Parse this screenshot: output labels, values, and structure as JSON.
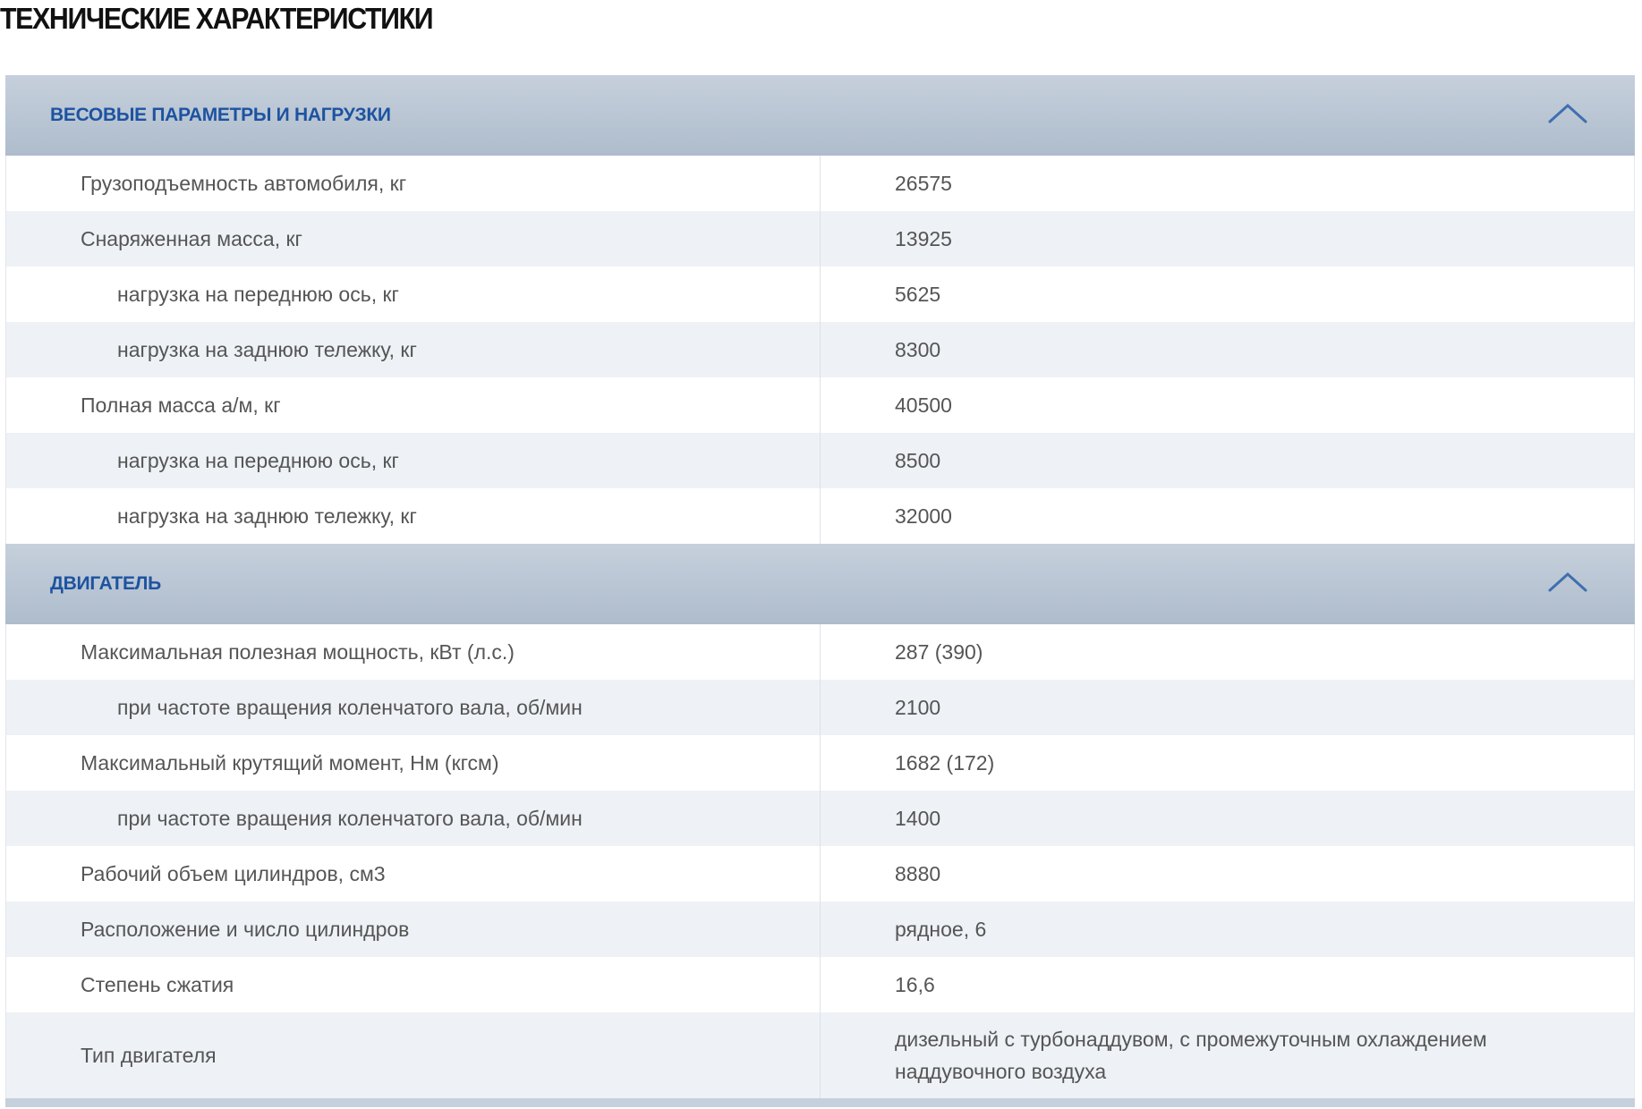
{
  "page_title": "ТЕХНИЧЕСКИЕ ХАРАКТЕРИСТИКИ",
  "colors": {
    "section_header": "#b8c5d4",
    "section_title": "#1d53a0",
    "row_alt": "#eef1f5"
  },
  "sections": [
    {
      "title": "ВЕСОВЫЕ ПАРАМЕТРЫ И НАГРУЗКИ",
      "icon": "chevron-up-icon",
      "rows": [
        {
          "label": "Грузоподъемность автомобиля, кг",
          "value": "26575",
          "sub": false
        },
        {
          "label": "Снаряженная масса, кг",
          "value": "13925",
          "sub": false
        },
        {
          "label": "нагрузка на переднюю ось, кг",
          "value": "5625",
          "sub": true
        },
        {
          "label": "нагрузка на заднюю тележку, кг",
          "value": "8300",
          "sub": true
        },
        {
          "label": "Полная масса а/м, кг",
          "value": "40500",
          "sub": false
        },
        {
          "label": "нагрузка на переднюю ось, кг",
          "value": "8500",
          "sub": true
        },
        {
          "label": "нагрузка на заднюю тележку, кг",
          "value": "32000",
          "sub": true
        }
      ]
    },
    {
      "title": "ДВИГАТЕЛЬ",
      "icon": "chevron-up-icon",
      "rows": [
        {
          "label": "Максимальная полезная мощность, кВт (л.с.)",
          "value": "287 (390)",
          "sub": false
        },
        {
          "label": "при частоте вращения коленчатого вала, об/мин",
          "value": "2100",
          "sub": true
        },
        {
          "label": "Максимальный крутящий момент, Нм (кгсм)",
          "value": "1682 (172)",
          "sub": false
        },
        {
          "label": "при частоте вращения коленчатого вала, об/мин",
          "value": "1400",
          "sub": true
        },
        {
          "label": "Рабочий объем цилиндров, см3",
          "value": "8880",
          "sub": false
        },
        {
          "label": "Расположение и число цилиндров",
          "value": "рядное, 6",
          "sub": false
        },
        {
          "label": "Степень сжатия",
          "value": "16,6",
          "sub": false
        },
        {
          "label": "Тип двигателя",
          "value": "дизельный с турбонаддувом, с промежуточным охлаждением наддувочного воздуха",
          "sub": false
        }
      ]
    }
  ]
}
